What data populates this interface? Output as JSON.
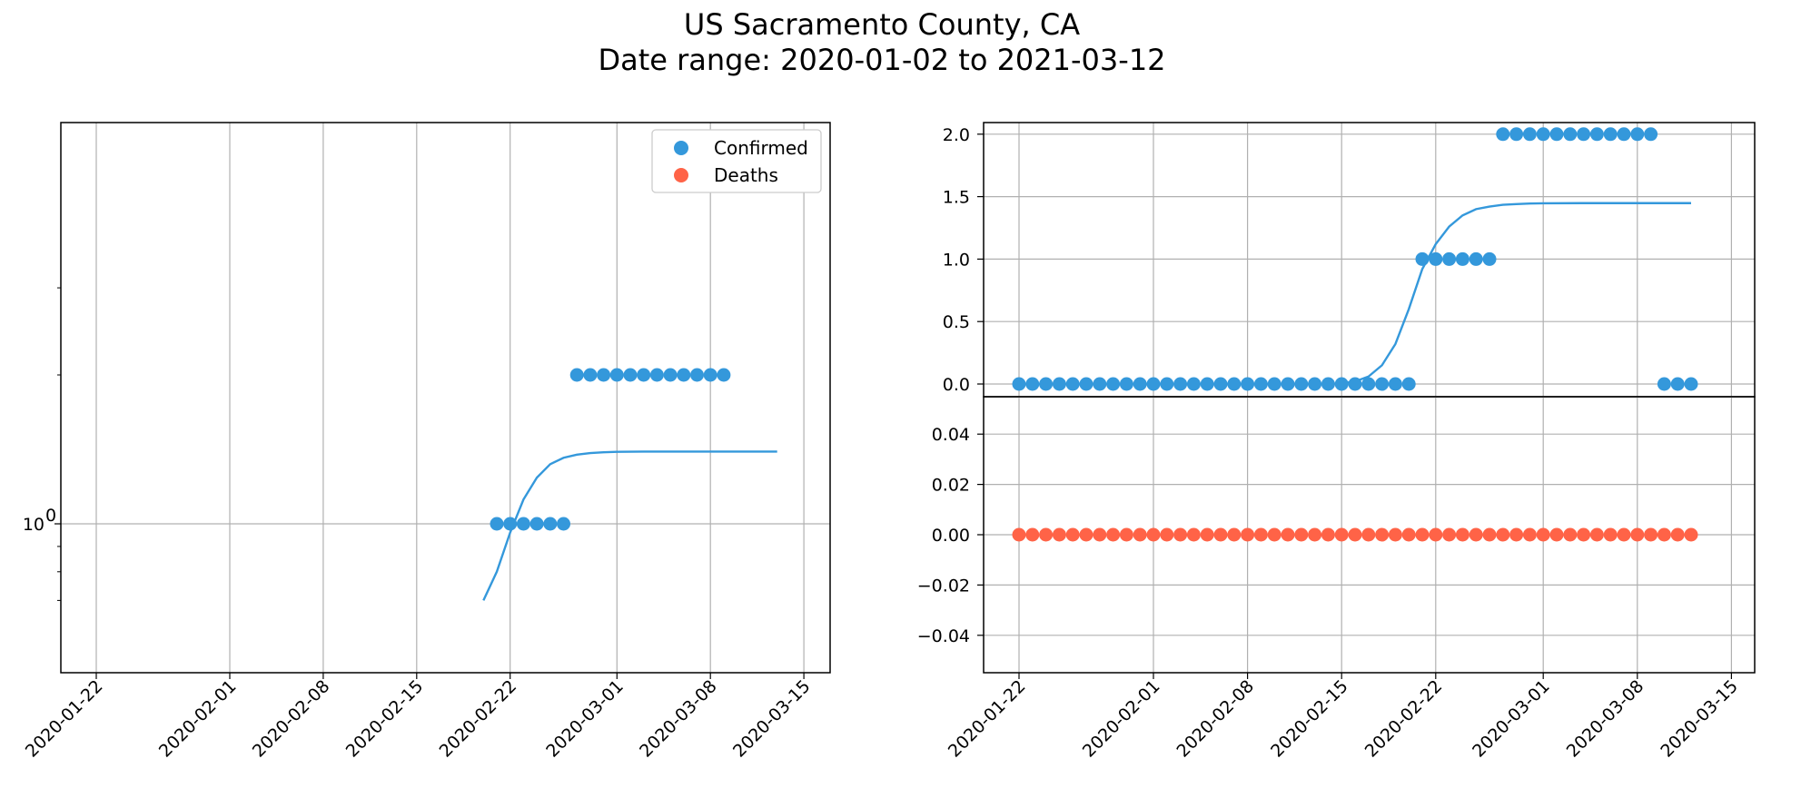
{
  "chart_data": [
    {
      "type": "scatter",
      "panel": "left",
      "title": "",
      "xlabel": "",
      "ylabel": "",
      "y_scale": "log",
      "grid": true,
      "legend_placement": "top-right",
      "x_ticks": [
        "2020-01-22",
        "2020-02-01",
        "2020-02-08",
        "2020-02-15",
        "2020-02-22",
        "2020-03-01",
        "2020-03-08",
        "2020-03-15"
      ],
      "y_ticks": [
        {
          "value": 1,
          "label": "10",
          "sup": "0"
        }
      ],
      "ylim": [
        0.7,
        3.2
      ],
      "series": [
        {
          "name": "Confirmed",
          "kind": "points",
          "color": "#3498db",
          "x": [
            "2020-02-21",
            "2020-02-22",
            "2020-02-23",
            "2020-02-24",
            "2020-02-25",
            "2020-02-26",
            "2020-02-27",
            "2020-02-28",
            "2020-02-29",
            "2020-03-01",
            "2020-03-02",
            "2020-03-03",
            "2020-03-04",
            "2020-03-05",
            "2020-03-06",
            "2020-03-07",
            "2020-03-08",
            "2020-03-09"
          ],
          "y": [
            1,
            1,
            1,
            1,
            1,
            1,
            2,
            2,
            2,
            2,
            2,
            2,
            2,
            2,
            2,
            2,
            2,
            2
          ]
        },
        {
          "name": "Deaths",
          "kind": "points",
          "color": "#ff6347",
          "x": [],
          "y": []
        },
        {
          "kind": "line",
          "color": "#3498db",
          "x": [
            "2020-02-20",
            "2020-02-21",
            "2020-02-22",
            "2020-02-23",
            "2020-02-24",
            "2020-02-25",
            "2020-02-26",
            "2020-02-27",
            "2020-02-28",
            "2020-02-29",
            "2020-03-01",
            "2020-03-03",
            "2020-03-06",
            "2020-03-09",
            "2020-03-13"
          ],
          "y": [
            0.7,
            0.8,
            0.96,
            1.12,
            1.24,
            1.32,
            1.36,
            1.38,
            1.39,
            1.395,
            1.398,
            1.4,
            1.4,
            1.4,
            1.4
          ]
        }
      ]
    },
    {
      "type": "scatter",
      "panel": "right-top",
      "title": "",
      "xlabel": "",
      "ylabel": "",
      "grid": true,
      "ylim": [
        -0.1,
        2.05
      ],
      "y_ticks": [
        "0.0",
        "0.5",
        "1.0",
        "1.5",
        "2.0"
      ],
      "series": [
        {
          "name": "Confirmed",
          "kind": "points",
          "color": "#3498db",
          "x": [
            "2020-01-22",
            "2020-01-23",
            "2020-01-24",
            "2020-01-25",
            "2020-01-26",
            "2020-01-27",
            "2020-01-28",
            "2020-01-29",
            "2020-01-30",
            "2020-01-31",
            "2020-02-01",
            "2020-02-02",
            "2020-02-03",
            "2020-02-04",
            "2020-02-05",
            "2020-02-06",
            "2020-02-07",
            "2020-02-08",
            "2020-02-09",
            "2020-02-10",
            "2020-02-11",
            "2020-02-12",
            "2020-02-13",
            "2020-02-14",
            "2020-02-15",
            "2020-02-16",
            "2020-02-17",
            "2020-02-18",
            "2020-02-19",
            "2020-02-20",
            "2020-02-21",
            "2020-02-22",
            "2020-02-23",
            "2020-02-24",
            "2020-02-25",
            "2020-02-26",
            "2020-02-27",
            "2020-02-28",
            "2020-02-29",
            "2020-03-01",
            "2020-03-02",
            "2020-03-03",
            "2020-03-04",
            "2020-03-05",
            "2020-03-06",
            "2020-03-07",
            "2020-03-08",
            "2020-03-09",
            "2020-03-10",
            "2020-03-11",
            "2020-03-12"
          ],
          "y": [
            0,
            0,
            0,
            0,
            0,
            0,
            0,
            0,
            0,
            0,
            0,
            0,
            0,
            0,
            0,
            0,
            0,
            0,
            0,
            0,
            0,
            0,
            0,
            0,
            0,
            0,
            0,
            0,
            0,
            0,
            1,
            1,
            1,
            1,
            1,
            1,
            2,
            2,
            2,
            2,
            2,
            2,
            2,
            2,
            2,
            2,
            2,
            2,
            0,
            0,
            0
          ]
        },
        {
          "kind": "line",
          "color": "#3498db",
          "x": [
            "2020-01-22",
            "2020-02-14",
            "2020-02-15",
            "2020-02-16",
            "2020-02-17",
            "2020-02-18",
            "2020-02-19",
            "2020-02-20",
            "2020-02-21",
            "2020-02-22",
            "2020-02-23",
            "2020-02-24",
            "2020-02-25",
            "2020-02-26",
            "2020-02-27",
            "2020-02-28",
            "2020-02-29",
            "2020-03-01",
            "2020-03-04",
            "2020-03-08",
            "2020-03-12"
          ],
          "y": [
            0,
            0.0,
            0.005,
            0.02,
            0.06,
            0.15,
            0.32,
            0.6,
            0.92,
            1.12,
            1.26,
            1.35,
            1.4,
            1.42,
            1.435,
            1.44,
            1.445,
            1.447,
            1.448,
            1.448,
            1.448
          ]
        }
      ]
    },
    {
      "type": "scatter",
      "panel": "right-bottom",
      "title": "",
      "xlabel": "",
      "ylabel": "",
      "grid": true,
      "ylim": [
        -0.055,
        0.055
      ],
      "y_ticks": [
        "−0.04",
        "−0.02",
        "0.00",
        "0.02",
        "0.04"
      ],
      "x_ticks": [
        "2020-01-22",
        "2020-02-01",
        "2020-02-08",
        "2020-02-15",
        "2020-02-22",
        "2020-03-01",
        "2020-03-08",
        "2020-03-15"
      ],
      "series": [
        {
          "name": "Deaths",
          "kind": "points",
          "color": "#ff6347",
          "x_start": "2020-01-22",
          "x_end": "2020-03-12",
          "y_constant": 0
        }
      ]
    }
  ],
  "figure": {
    "title_line1": "US Sacramento County, CA",
    "title_line2": "Date range: 2020-01-02 to 2021-03-12"
  },
  "legend": {
    "confirmed_label": "Confirmed",
    "deaths_label": "Deaths"
  }
}
